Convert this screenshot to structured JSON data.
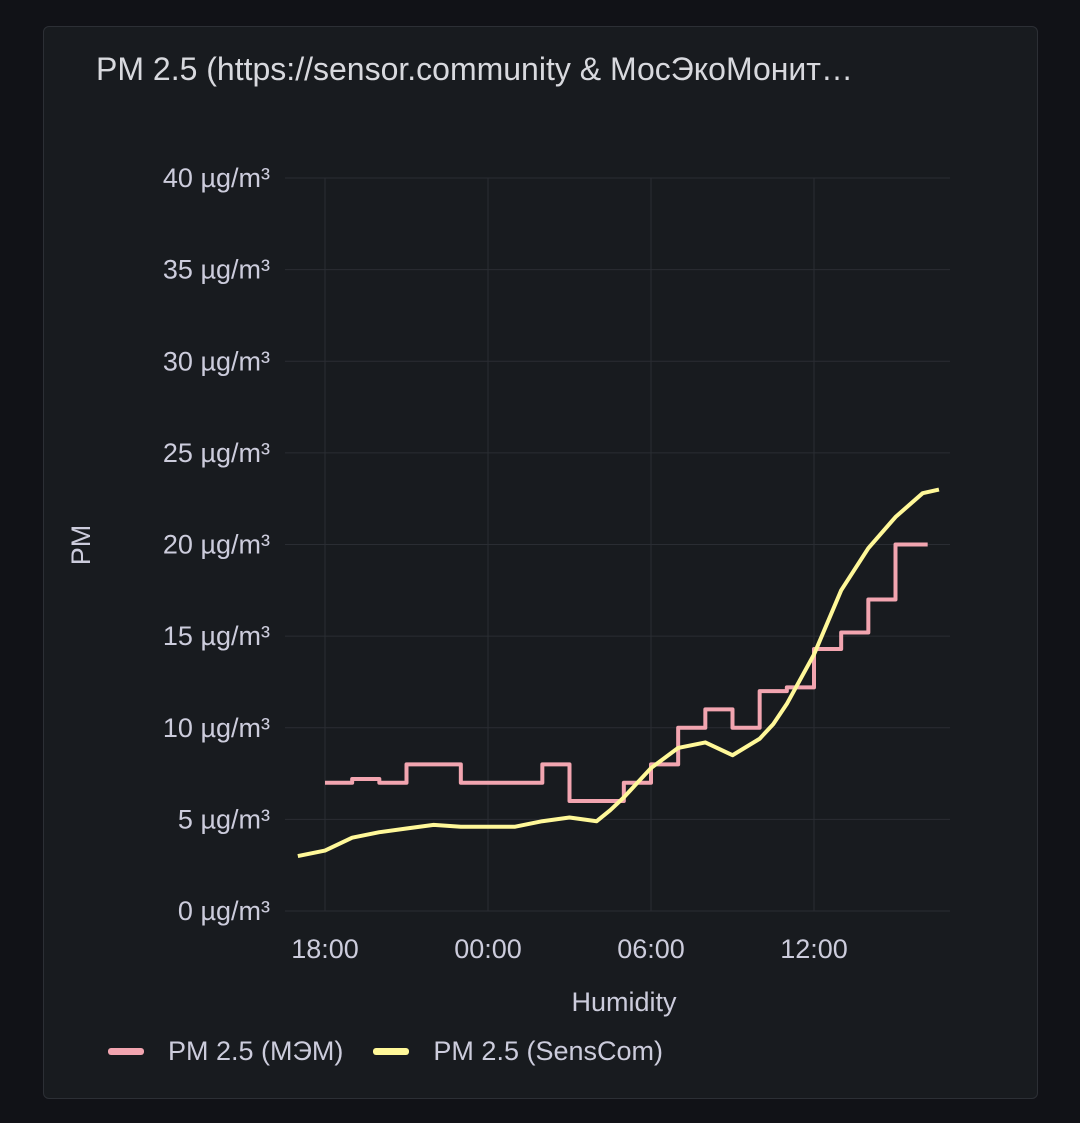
{
  "panel": {
    "title": "PM 2.5 (https://sensor.community & МосЭкоМонит…"
  },
  "chart_data": {
    "type": "line",
    "title": "PM 2.5 (https://sensor.community & МосЭкоМонит…",
    "xlabel": "Humidity",
    "ylabel": "PM",
    "x_ticks": [
      "18:00",
      "00:00",
      "06:00",
      "12:00"
    ],
    "y_ticks": [
      "0 µg/m³",
      "5 µg/m³",
      "10 µg/m³",
      "15 µg/m³",
      "20 µg/m³",
      "25 µg/m³",
      "30 µg/m³",
      "35 µg/m³",
      "40 µg/m³"
    ],
    "y_tick_values": [
      0,
      5,
      10,
      15,
      20,
      25,
      30,
      35,
      40
    ],
    "x_tick_values": [
      0,
      6,
      12,
      18
    ],
    "xlim": [
      -1.5,
      23
    ],
    "ylim": [
      0,
      40
    ],
    "grid": true,
    "legend_position": "bottom-left",
    "series": [
      {
        "name": "PM 2.5 (МЭМ)",
        "color": "#f2a5b0",
        "step": true,
        "x": [
          0,
          1,
          2,
          3,
          4,
          5,
          6,
          7,
          8,
          9,
          10,
          11,
          12,
          13,
          14,
          15,
          16,
          17,
          18,
          19,
          20,
          21,
          22
        ],
        "values": [
          7,
          7.2,
          7,
          8,
          8,
          7,
          7,
          7,
          8,
          6,
          6,
          7,
          8,
          10,
          11,
          10,
          12,
          12.2,
          14.3,
          15.2,
          17,
          20,
          20
        ]
      },
      {
        "name": "PM 2.5 (SensCom)",
        "color": "#fff899",
        "step": false,
        "x": [
          -1,
          0,
          1,
          2,
          3,
          4,
          5,
          6,
          7,
          8,
          9,
          10,
          10.5,
          11,
          12,
          13,
          14,
          15,
          16,
          16.5,
          17,
          18,
          19,
          20,
          21,
          22,
          22.6
        ],
        "values": [
          3,
          3.3,
          4,
          4.3,
          4.5,
          4.7,
          4.6,
          4.6,
          4.6,
          4.9,
          5.1,
          4.9,
          5.5,
          6.2,
          7.8,
          8.9,
          9.2,
          8.5,
          9.4,
          10.2,
          11.3,
          14,
          17.5,
          19.8,
          21.5,
          22.8,
          23
        ]
      }
    ]
  }
}
